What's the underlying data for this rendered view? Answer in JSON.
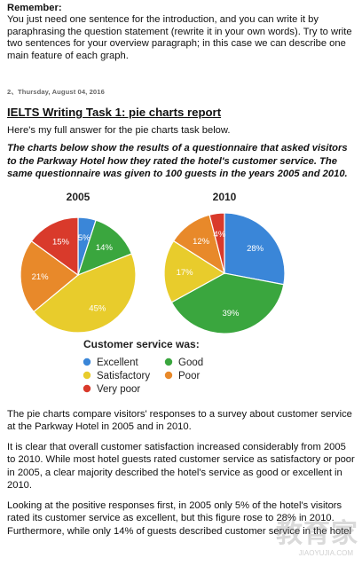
{
  "remember": {
    "heading": "Remember:",
    "text": "You just need one sentence for the introduction, and you can write it by paraphrasing the question statement (rewrite it in your own words). Try to write two sentences for your overview paragraph; in this case we can describe one main feature of each graph."
  },
  "post": {
    "date": "2、Thursday, August 04, 2016",
    "title": "IELTS Writing Task 1: pie charts report",
    "intro": "Here's my full answer for the pie charts task below.",
    "question": "The charts below show the results of a questionnaire that asked visitors to the Parkway Hotel how they rated the hotel's customer service. The same questionnaire was given to 100 guests in the years 2005 and 2010."
  },
  "chart_data": [
    {
      "type": "pie",
      "title": "2005",
      "slices": [
        {
          "label": "Excellent",
          "value": 5,
          "color": "#3a86d8",
          "text": "5%"
        },
        {
          "label": "Good",
          "value": 14,
          "color": "#3aa63e",
          "text": "14%"
        },
        {
          "label": "Satisfactory",
          "value": 45,
          "color": "#e8cc2c",
          "text": "45%"
        },
        {
          "label": "Poor",
          "value": 21,
          "color": "#e8892a",
          "text": "21%"
        },
        {
          "label": "Very poor",
          "value": 15,
          "color": "#d93a2b",
          "text": "15%"
        }
      ]
    },
    {
      "type": "pie",
      "title": "2010",
      "slices": [
        {
          "label": "Excellent",
          "value": 28,
          "color": "#3a86d8",
          "text": "28%"
        },
        {
          "label": "Good",
          "value": 39,
          "color": "#3aa63e",
          "text": "39%"
        },
        {
          "label": "Satisfactory",
          "value": 17,
          "color": "#e8cc2c",
          "text": "17%"
        },
        {
          "label": "Poor",
          "value": 12,
          "color": "#e8892a",
          "text": "12%"
        },
        {
          "label": "Very poor",
          "value": 4,
          "color": "#d93a2b",
          "text": "4%"
        }
      ]
    }
  ],
  "legend": {
    "title": "Customer service was:",
    "items": [
      {
        "label": "Excellent",
        "color": "#3a86d8"
      },
      {
        "label": "Good",
        "color": "#3aa63e"
      },
      {
        "label": "Satisfactory",
        "color": "#e8cc2c"
      },
      {
        "label": "Poor",
        "color": "#e8892a"
      },
      {
        "label": "Very poor",
        "color": "#d93a2b"
      }
    ]
  },
  "answer": {
    "p1": "The pie charts compare visitors' responses to a survey about customer service at the Parkway Hotel in 2005 and in 2010.",
    "p2": "It is clear that overall customer satisfaction increased considerably from 2005 to 2010. While most hotel guests rated customer service as satisfactory or poor in 2005, a clear majority described the hotel's service as good or excellent in 2010.",
    "p3": "Looking at the positive responses first, in 2005 only 5% of the hotel's visitors rated its customer service as excellent, but this figure rose to 28% in 2010. Furthermore, while only 14% of guests described customer service in the hotel"
  },
  "watermark": {
    "text": "教育家",
    "sub": "JIAOYUJIA.COM"
  }
}
